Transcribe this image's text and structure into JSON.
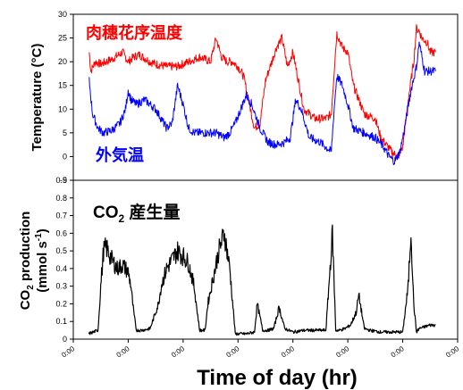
{
  "chart_data": [
    {
      "type": "line",
      "ylabel": "Temperature (°C)",
      "ylim": [
        -5,
        30
      ],
      "yticks": [
        -5,
        0,
        5,
        10,
        15,
        20,
        25,
        30
      ],
      "xlim": [
        0,
        7
      ],
      "grid": false,
      "legend_position": "inline labels: top-left (red), bottom-left (blue)",
      "series": [
        {
          "name": "肉穗花序温度",
          "color": "#ff0000",
          "x": [
            0.29,
            0.32,
            0.4,
            0.5,
            0.7,
            0.9,
            1.0,
            1.1,
            1.2,
            1.4,
            1.5,
            1.7,
            1.9,
            2.1,
            2.3,
            2.5,
            2.6,
            2.7,
            2.8,
            2.9,
            3.0,
            3.1,
            3.3,
            3.4,
            3.5,
            3.7,
            3.8,
            3.9,
            4.0,
            4.2,
            4.4,
            4.6,
            4.7,
            4.75,
            4.8,
            4.9,
            5.0,
            5.1,
            5.3,
            5.5,
            5.6,
            5.8,
            5.9,
            6.0,
            6.1,
            6.2,
            6.25,
            6.3,
            6.35,
            6.45,
            6.5,
            6.55,
            6.6
          ],
          "y": [
            22,
            18,
            20,
            19.5,
            20.5,
            22,
            20,
            21,
            21.5,
            20,
            19.5,
            19,
            19,
            20,
            21,
            20,
            25,
            21,
            20,
            20,
            19,
            17,
            6,
            7,
            16,
            23,
            25,
            19,
            22,
            10,
            8,
            8,
            9,
            18,
            26,
            23,
            22,
            15,
            9,
            8,
            4,
            1,
            0,
            2,
            12,
            20,
            27,
            26.5,
            25,
            24,
            22,
            22,
            22
          ]
        },
        {
          "name": "外気温",
          "color": "#0000ff",
          "x": [
            0.29,
            0.35,
            0.45,
            0.55,
            0.7,
            0.85,
            0.95,
            1.0,
            1.05,
            1.15,
            1.3,
            1.5,
            1.7,
            1.8,
            1.9,
            2.0,
            2.1,
            2.2,
            2.4,
            2.6,
            2.75,
            2.85,
            2.95,
            3.05,
            3.15,
            3.25,
            3.4,
            3.55,
            3.7,
            3.85,
            3.95,
            4.05,
            4.15,
            4.3,
            4.5,
            4.6,
            4.7,
            4.75,
            4.8,
            4.9,
            5.0,
            5.1,
            5.3,
            5.5,
            5.65,
            5.75,
            5.85,
            5.95,
            6.05,
            6.15,
            6.25,
            6.3,
            6.35,
            6.4,
            6.5,
            6.6
          ],
          "y": [
            16,
            9,
            6,
            5,
            5.5,
            7,
            10,
            14,
            12,
            11,
            12,
            10,
            6,
            7,
            15,
            11,
            6,
            5,
            5,
            5,
            4,
            5,
            7,
            10,
            13,
            11,
            6,
            3,
            2.5,
            3,
            4,
            12,
            10,
            4,
            3,
            2,
            1,
            10,
            17,
            15,
            11,
            6,
            5,
            4,
            2,
            0,
            -1,
            1,
            7,
            14,
            19,
            24,
            21,
            18,
            18,
            18
          ]
        }
      ]
    },
    {
      "type": "line",
      "ylabel": "CO2 production (mmol s-1)",
      "ylim": [
        0,
        0.9
      ],
      "yticks": [
        0,
        0.1,
        0.2,
        0.3,
        0.4,
        0.5,
        0.6,
        0.7,
        0.8,
        0.9
      ],
      "xlabel": "Time of day (hr)",
      "xlim": [
        0,
        7
      ],
      "xticks": [
        "0:00",
        "0:00",
        "0:00",
        "0:00",
        "0:00",
        "0:00",
        "0:00",
        "0:00"
      ],
      "grid": false,
      "series": [
        {
          "name": "CO2 産生量",
          "color": "#000000",
          "x": [
            0.28,
            0.45,
            0.5,
            0.55,
            0.6,
            0.7,
            0.8,
            0.9,
            1.0,
            1.05,
            1.1,
            1.15,
            1.25,
            1.4,
            1.55,
            1.6,
            1.7,
            1.8,
            1.9,
            2.0,
            2.1,
            2.2,
            2.3,
            2.4,
            2.45,
            2.55,
            2.65,
            2.75,
            2.85,
            2.95,
            3.05,
            3.15,
            3.3,
            3.35,
            3.45,
            3.55,
            3.65,
            3.75,
            3.85,
            4.0,
            4.2,
            4.4,
            4.6,
            4.72,
            4.78,
            4.85,
            4.95,
            5.05,
            5.15,
            5.2,
            5.3,
            5.4,
            5.6,
            5.8,
            6.0,
            6.1,
            6.15,
            6.2,
            6.25,
            6.3,
            6.4,
            6.5,
            6.6
          ],
          "y": [
            0.03,
            0.05,
            0.3,
            0.5,
            0.52,
            0.45,
            0.4,
            0.42,
            0.38,
            0.3,
            0.15,
            0.05,
            0.05,
            0.06,
            0.2,
            0.3,
            0.4,
            0.45,
            0.5,
            0.47,
            0.43,
            0.3,
            0.05,
            0.05,
            0.2,
            0.35,
            0.5,
            0.6,
            0.4,
            0.03,
            0.03,
            0.03,
            0.04,
            0.2,
            0.05,
            0.05,
            0.06,
            0.18,
            0.06,
            0.04,
            0.05,
            0.05,
            0.05,
            0.6,
            0.05,
            0.05,
            0.06,
            0.08,
            0.15,
            0.25,
            0.06,
            0.05,
            0.04,
            0.04,
            0.04,
            0.3,
            0.62,
            0.2,
            0.04,
            0.06,
            0.07,
            0.08,
            0.08
          ]
        }
      ]
    }
  ],
  "labels": {
    "top_ylabel": "Temperature (°C)",
    "red_label": "肉穗花序温度",
    "blue_label": "外気温",
    "co2_title_main": "CO",
    "co2_title_sub": "2",
    "co2_title_rest": " 産生量",
    "bottom_ylabel_line1_main": "CO",
    "bottom_ylabel_line1_sub": "2",
    "bottom_ylabel_line1_rest": " production",
    "bottom_ylabel_line2": "(mmol s",
    "bottom_ylabel_line2_sup": "-1",
    "bottom_ylabel_line2_end": ")",
    "xlabel": "Time of day (hr)"
  }
}
